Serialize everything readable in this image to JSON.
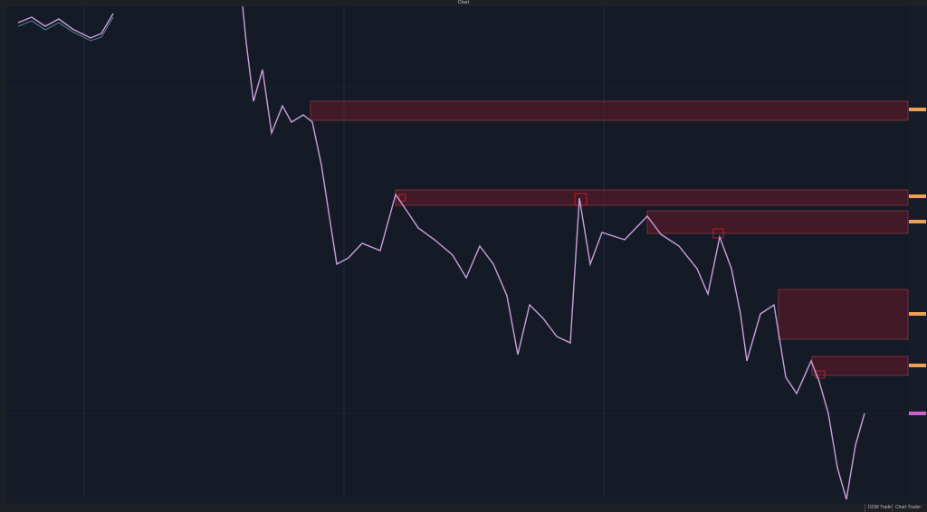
{
  "window": {
    "title": "Chart"
  },
  "status_bar": {
    "tabs": [
      "DOM Trader",
      "Chart Trader"
    ]
  }
}
